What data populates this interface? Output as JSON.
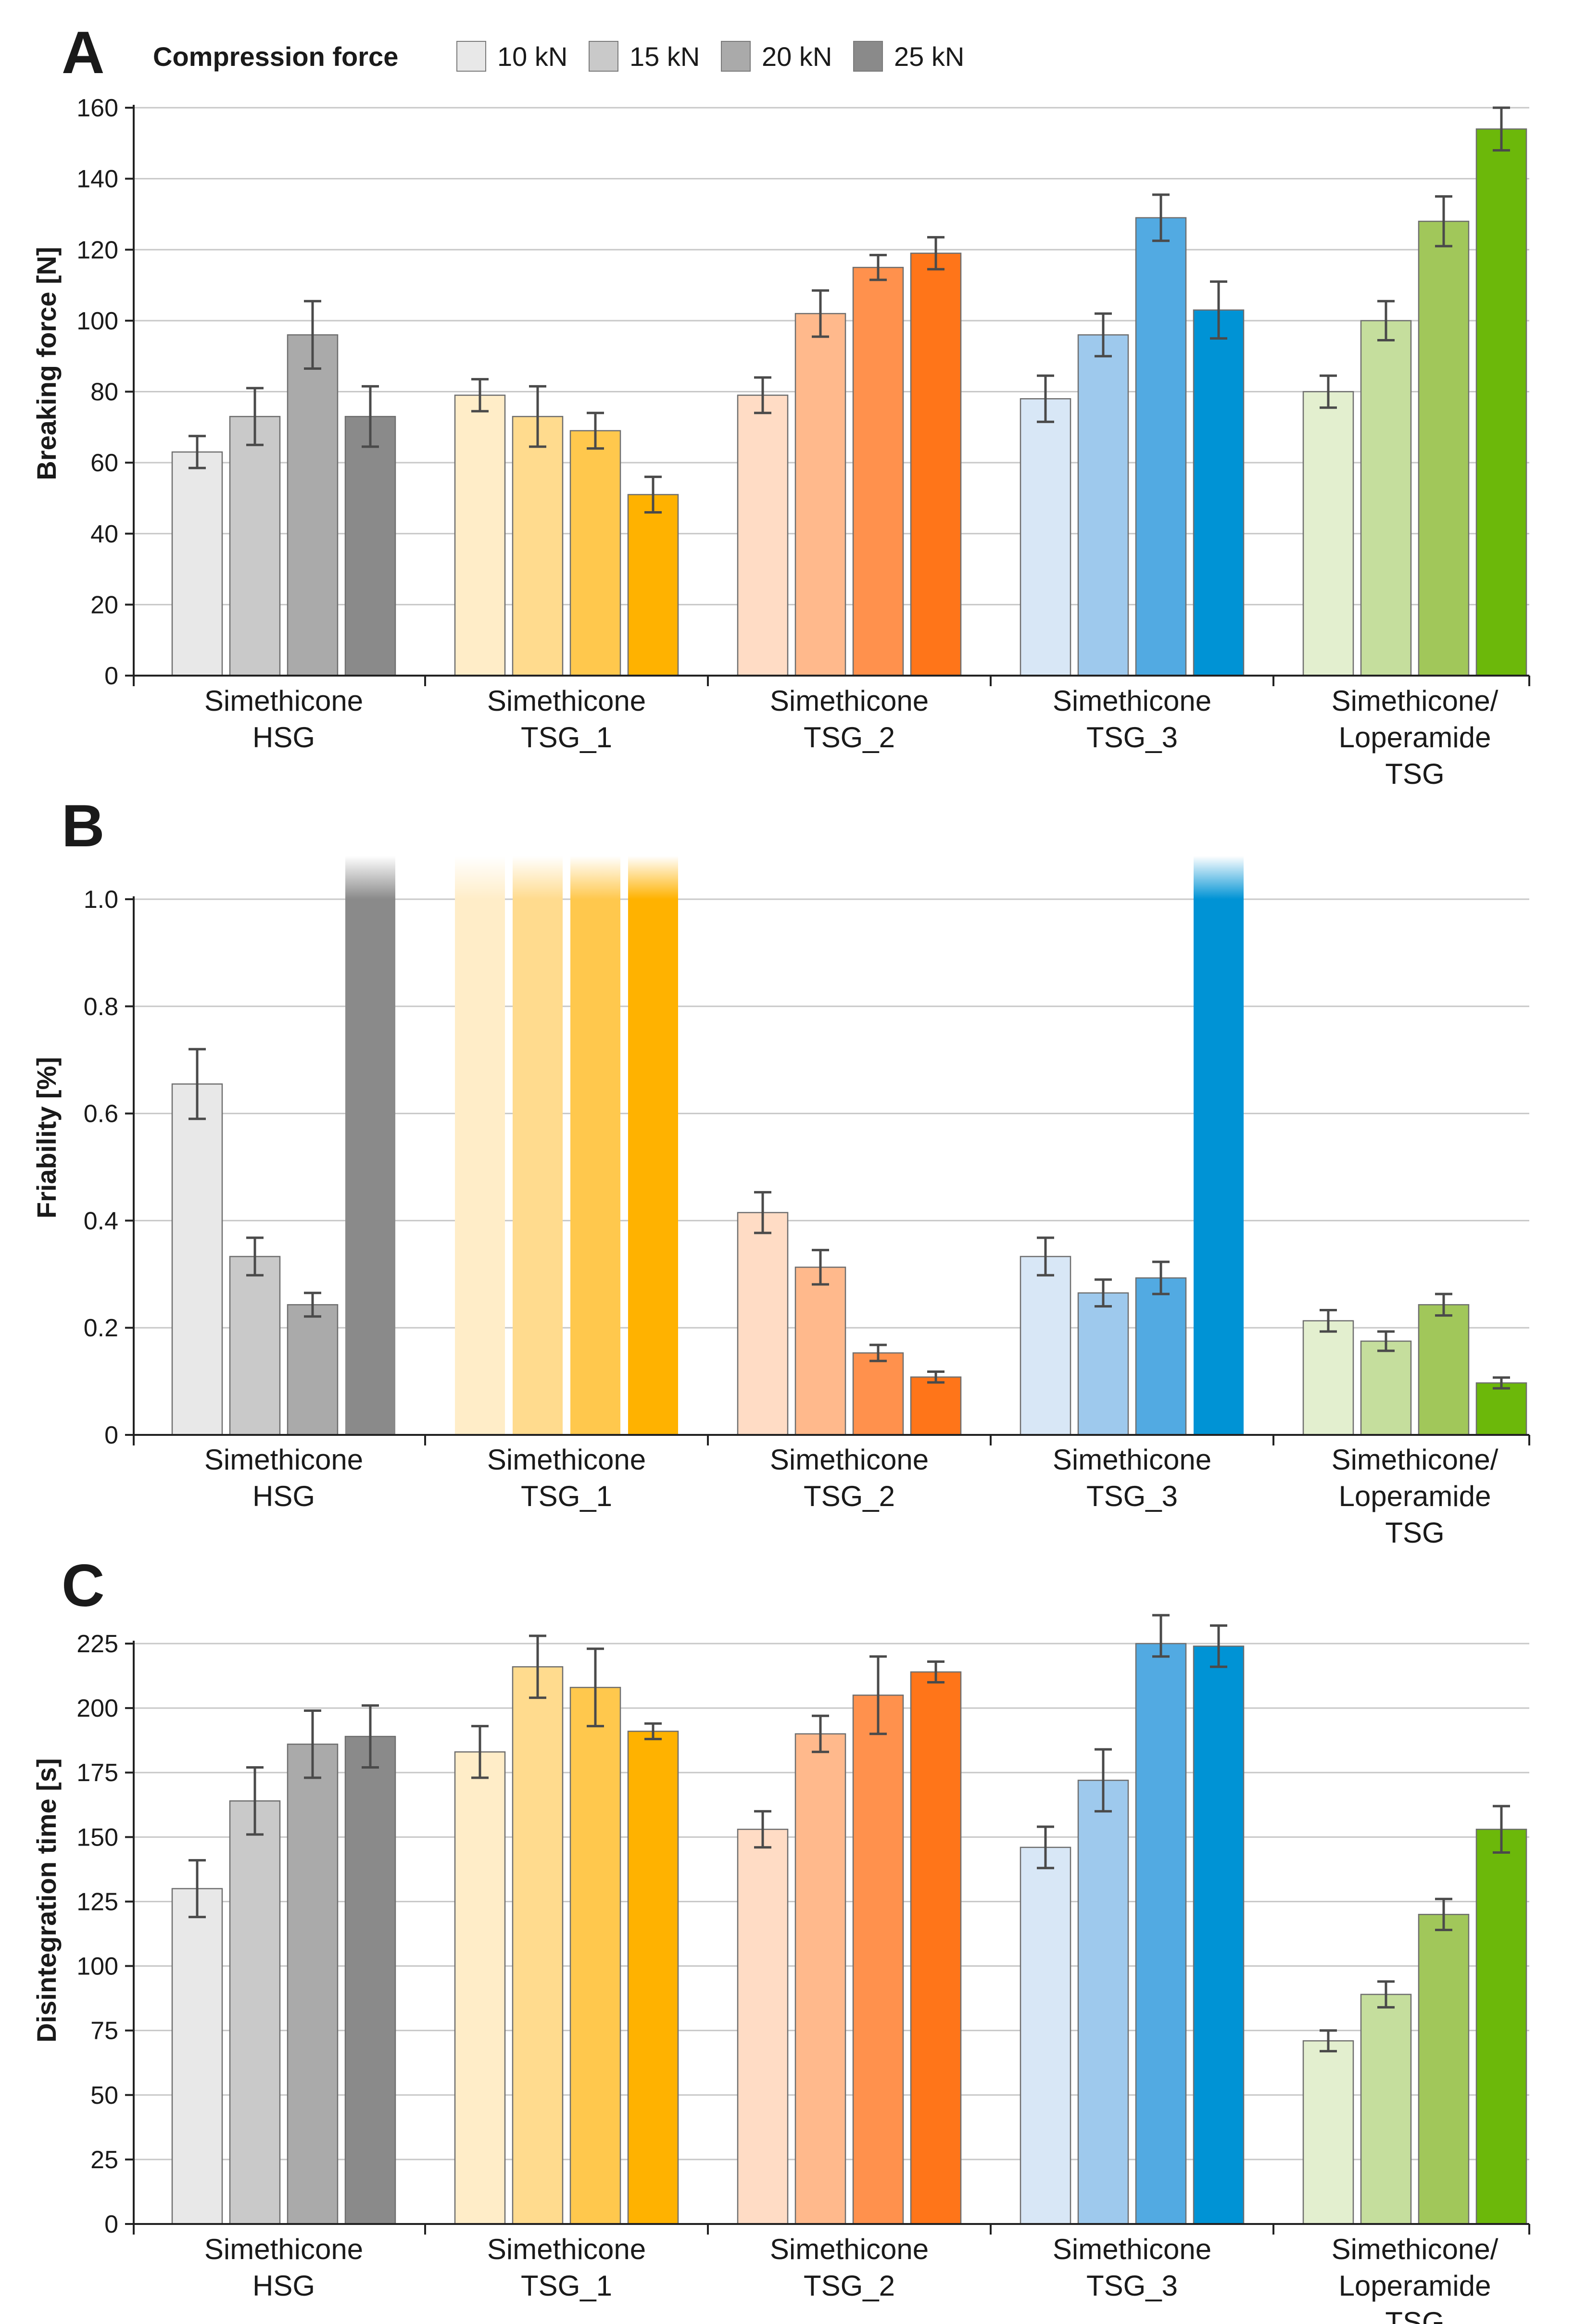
{
  "legend": {
    "title": "Compression force",
    "entries": [
      "10 kN",
      "15 kN",
      "20 kN",
      "25 kN"
    ]
  },
  "colors": {
    "gray": [
      "#e8e8e8",
      "#c9c9c9",
      "#aaaaaa",
      "#8a8a8a"
    ],
    "yellow": [
      "#ffedc8",
      "#ffdb8e",
      "#ffc84d",
      "#ffb200"
    ],
    "orange": [
      "#ffdcc5",
      "#ffb98c",
      "#ff914d",
      "#ff7519"
    ],
    "blue": [
      "#d8e7f6",
      "#9ec9ed",
      "#52aae2",
      "#0093d5"
    ],
    "green": [
      "#e3efcf",
      "#c5de9d",
      "#a1c75a",
      "#6cb80a"
    ],
    "grid": "#c8c8c8",
    "errorbar": "#4a4a4a"
  },
  "chart_data": [
    {
      "panel": "A",
      "type": "bar",
      "ylabel": "Breaking force [N]",
      "ylim": [
        0,
        160
      ],
      "yticks": [
        0,
        20,
        40,
        60,
        80,
        100,
        120,
        140,
        160
      ],
      "ytick_labels": [
        "0",
        "20",
        "40",
        "60",
        "80",
        "100",
        "120",
        "140",
        "160"
      ],
      "categories": [
        "Simethicone HSG",
        "Simethicone TSG_1",
        "Simethicone TSG_2",
        "Simethicone TSG_3",
        "Simethicone/ Loperamide TSG"
      ],
      "category_lines": [
        [
          "Simethicone",
          "HSG"
        ],
        [
          "Simethicone",
          "TSG_1"
        ],
        [
          "Simethicone",
          "TSG_2"
        ],
        [
          "Simethicone",
          "TSG_3"
        ],
        [
          "Simethicone/",
          "Loperamide",
          "TSG"
        ]
      ],
      "series": [
        {
          "name": "10 kN",
          "values": [
            63,
            79,
            79,
            78,
            80
          ],
          "errors": [
            4.5,
            4.5,
            5,
            6.5,
            4.5
          ]
        },
        {
          "name": "15 kN",
          "values": [
            73,
            73,
            102,
            96,
            100
          ],
          "errors": [
            8,
            8.5,
            6.5,
            6,
            5.5
          ]
        },
        {
          "name": "20 kN",
          "values": [
            96,
            69,
            115,
            129,
            128
          ],
          "errors": [
            9.5,
            5,
            3.5,
            6.5,
            7
          ]
        },
        {
          "name": "25 kN",
          "values": [
            73,
            51,
            119,
            103,
            154
          ],
          "errors": [
            8.5,
            5,
            4.5,
            8,
            6
          ]
        }
      ],
      "truncated": []
    },
    {
      "panel": "B",
      "type": "bar",
      "ylabel": "Friability [%]",
      "ylim": [
        0,
        1.0
      ],
      "yticks": [
        0,
        0.2,
        0.4,
        0.6,
        0.8,
        1.0
      ],
      "ytick_labels": [
        "0",
        "0.2",
        "0.4",
        "0.6",
        "0.8",
        "1.0"
      ],
      "categories": [
        "Simethicone HSG",
        "Simethicone TSG_1",
        "Simethicone TSG_2",
        "Simethicone TSG_3",
        "Simethicone/ Loperamide TSG"
      ],
      "category_lines": [
        [
          "Simethicone",
          "HSG"
        ],
        [
          "Simethicone",
          "TSG_1"
        ],
        [
          "Simethicone",
          "TSG_2"
        ],
        [
          "Simethicone",
          "TSG_3"
        ],
        [
          "Simethicone/",
          "Loperamide",
          "TSG"
        ]
      ],
      "series": [
        {
          "name": "10 kN",
          "values": [
            0.655,
            1.0,
            0.415,
            0.333,
            0.213
          ],
          "errors": [
            0.065,
            0,
            0.038,
            0.035,
            0.02
          ]
        },
        {
          "name": "15 kN",
          "values": [
            0.333,
            1.0,
            0.313,
            0.265,
            0.175
          ],
          "errors": [
            0.035,
            0,
            0.032,
            0.025,
            0.018
          ]
        },
        {
          "name": "20 kN",
          "values": [
            0.243,
            1.0,
            0.153,
            0.293,
            0.243
          ],
          "errors": [
            0.022,
            0,
            0.015,
            0.03,
            0.02
          ]
        },
        {
          "name": "25 kN",
          "values": [
            1.0,
            1.0,
            0.108,
            1.0,
            0.097
          ],
          "errors": [
            0,
            0,
            0.01,
            0,
            0.01
          ]
        }
      ],
      "truncated": [
        [
          0,
          3
        ],
        [
          1,
          0
        ],
        [
          1,
          1
        ],
        [
          1,
          2
        ],
        [
          1,
          3
        ],
        [
          3,
          3
        ]
      ]
    },
    {
      "panel": "C",
      "type": "bar",
      "ylabel": "Disintegration time [s]",
      "ylim": [
        0,
        225
      ],
      "yticks": [
        0,
        25,
        50,
        75,
        100,
        125,
        150,
        175,
        200,
        225
      ],
      "ytick_labels": [
        "0",
        "25",
        "50",
        "75",
        "100",
        "125",
        "150",
        "175",
        "200",
        "225"
      ],
      "categories": [
        "Simethicone HSG",
        "Simethicone TSG_1",
        "Simethicone TSG_2",
        "Simethicone TSG_3",
        "Simethicone/ Loperamide TSG"
      ],
      "category_lines": [
        [
          "Simethicone",
          "HSG"
        ],
        [
          "Simethicone",
          "TSG_1"
        ],
        [
          "Simethicone",
          "TSG_2"
        ],
        [
          "Simethicone",
          "TSG_3"
        ],
        [
          "Simethicone/",
          "Loperamide",
          "TSG"
        ]
      ],
      "series": [
        {
          "name": "10 kN",
          "values": [
            130,
            183,
            153,
            146,
            71
          ],
          "errors": [
            11,
            10,
            7,
            8,
            4
          ]
        },
        {
          "name": "15 kN",
          "values": [
            164,
            216,
            190,
            172,
            89
          ],
          "errors": [
            13,
            12,
            7,
            12,
            5
          ]
        },
        {
          "name": "20 kN",
          "values": [
            186,
            208,
            205,
            228,
            120
          ],
          "errors": [
            13,
            15,
            15,
            8,
            6
          ]
        },
        {
          "name": "25 kN",
          "values": [
            189,
            191,
            214,
            224,
            153
          ],
          "errors": [
            12,
            3,
            4,
            8,
            9
          ]
        }
      ],
      "truncated": []
    }
  ]
}
